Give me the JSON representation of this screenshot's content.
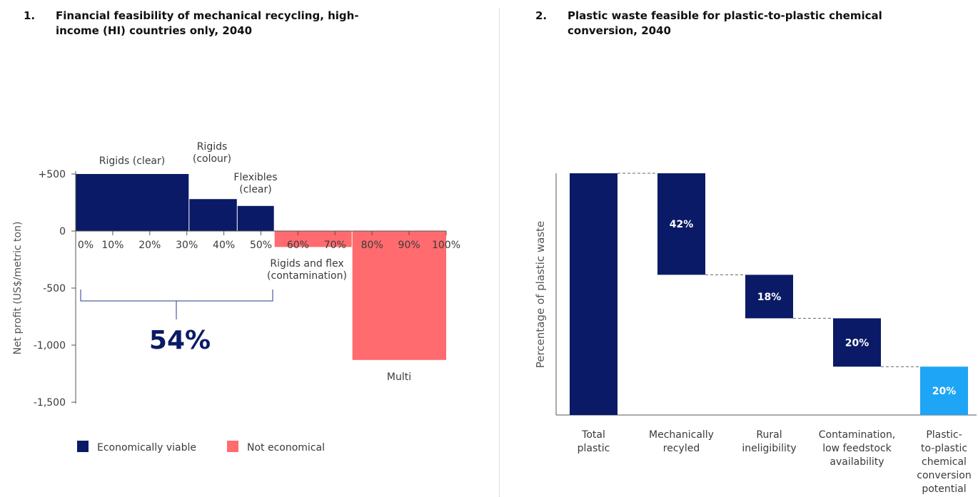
{
  "colors": {
    "navy": "#0a1a66",
    "coral": "#ff6b6e",
    "sky": "#1ea5f5",
    "axis": "#555555"
  },
  "headings": {
    "left": {
      "number": "1.",
      "text": "Financial feasibility of mechanical recycling, high-income (HI) countries only, 2040"
    },
    "right": {
      "number": "2.",
      "text": "Plastic waste feasible for plastic-to-plastic chemical conversion, 2040"
    }
  },
  "chart_data": [
    {
      "type": "bar",
      "subtype": "variable-width",
      "ylabel": "Net profit (US$/metric ton)",
      "y_ticks": [
        "+500",
        "0",
        "-500",
        "-1,000",
        "-1,500"
      ],
      "y_tick_values": [
        500,
        0,
        -500,
        -1000,
        -1500
      ],
      "ylim": [
        -1500,
        500
      ],
      "x_ticks": [
        "0%",
        "10%",
        "20%",
        "30%",
        "40%",
        "50%",
        "60%",
        "70%",
        "80%",
        "90%",
        "100%"
      ],
      "x_tick_values": [
        0,
        10,
        20,
        30,
        40,
        50,
        60,
        70,
        80,
        90,
        100
      ],
      "xlim": [
        0,
        100
      ],
      "bars": [
        {
          "label": "Rigids (clear)",
          "x_start": 0,
          "x_end": 30.5,
          "value": 500,
          "category": "viable"
        },
        {
          "label": "Rigids\n(colour)",
          "x_start": 30.5,
          "x_end": 43.5,
          "value": 280,
          "category": "viable"
        },
        {
          "label": "Flexibles\n(clear)",
          "x_start": 43.5,
          "x_end": 53.5,
          "value": 220,
          "category": "viable"
        },
        {
          "label": "Rigids and flex\n(contamination)",
          "x_start": 53.5,
          "x_end": 74.5,
          "value": -140,
          "category": "not"
        },
        {
          "label": "Multi",
          "x_start": 74.5,
          "x_end": 100,
          "value": -1130,
          "category": "not"
        }
      ],
      "annotation": {
        "text": "54%",
        "x_from": 0,
        "x_to": 53.5
      },
      "legend": [
        {
          "label": "Economically viable",
          "category": "viable"
        },
        {
          "label": "Not economical",
          "category": "not"
        }
      ],
      "legend_position": "bottom-left"
    },
    {
      "type": "waterfall",
      "ylabel": "Percentage of plastic waste",
      "ylim": [
        0,
        100
      ],
      "steps": [
        {
          "label": "Total\nplastic",
          "value": 100,
          "display": "",
          "kind": "total"
        },
        {
          "label": "Mechanically\nrecyled",
          "value": -42,
          "display": "42%",
          "kind": "decrease"
        },
        {
          "label": "Rural\nineligibility",
          "value": -18,
          "display": "18%",
          "kind": "decrease"
        },
        {
          "label": "Contamination,\nlow feedstock\navailability",
          "value": -20,
          "display": "20%",
          "kind": "decrease"
        },
        {
          "label": "Plastic-\nto-plastic\nchemical\nconversion\npotential",
          "value": 20,
          "display": "20%",
          "kind": "result"
        }
      ]
    }
  ]
}
